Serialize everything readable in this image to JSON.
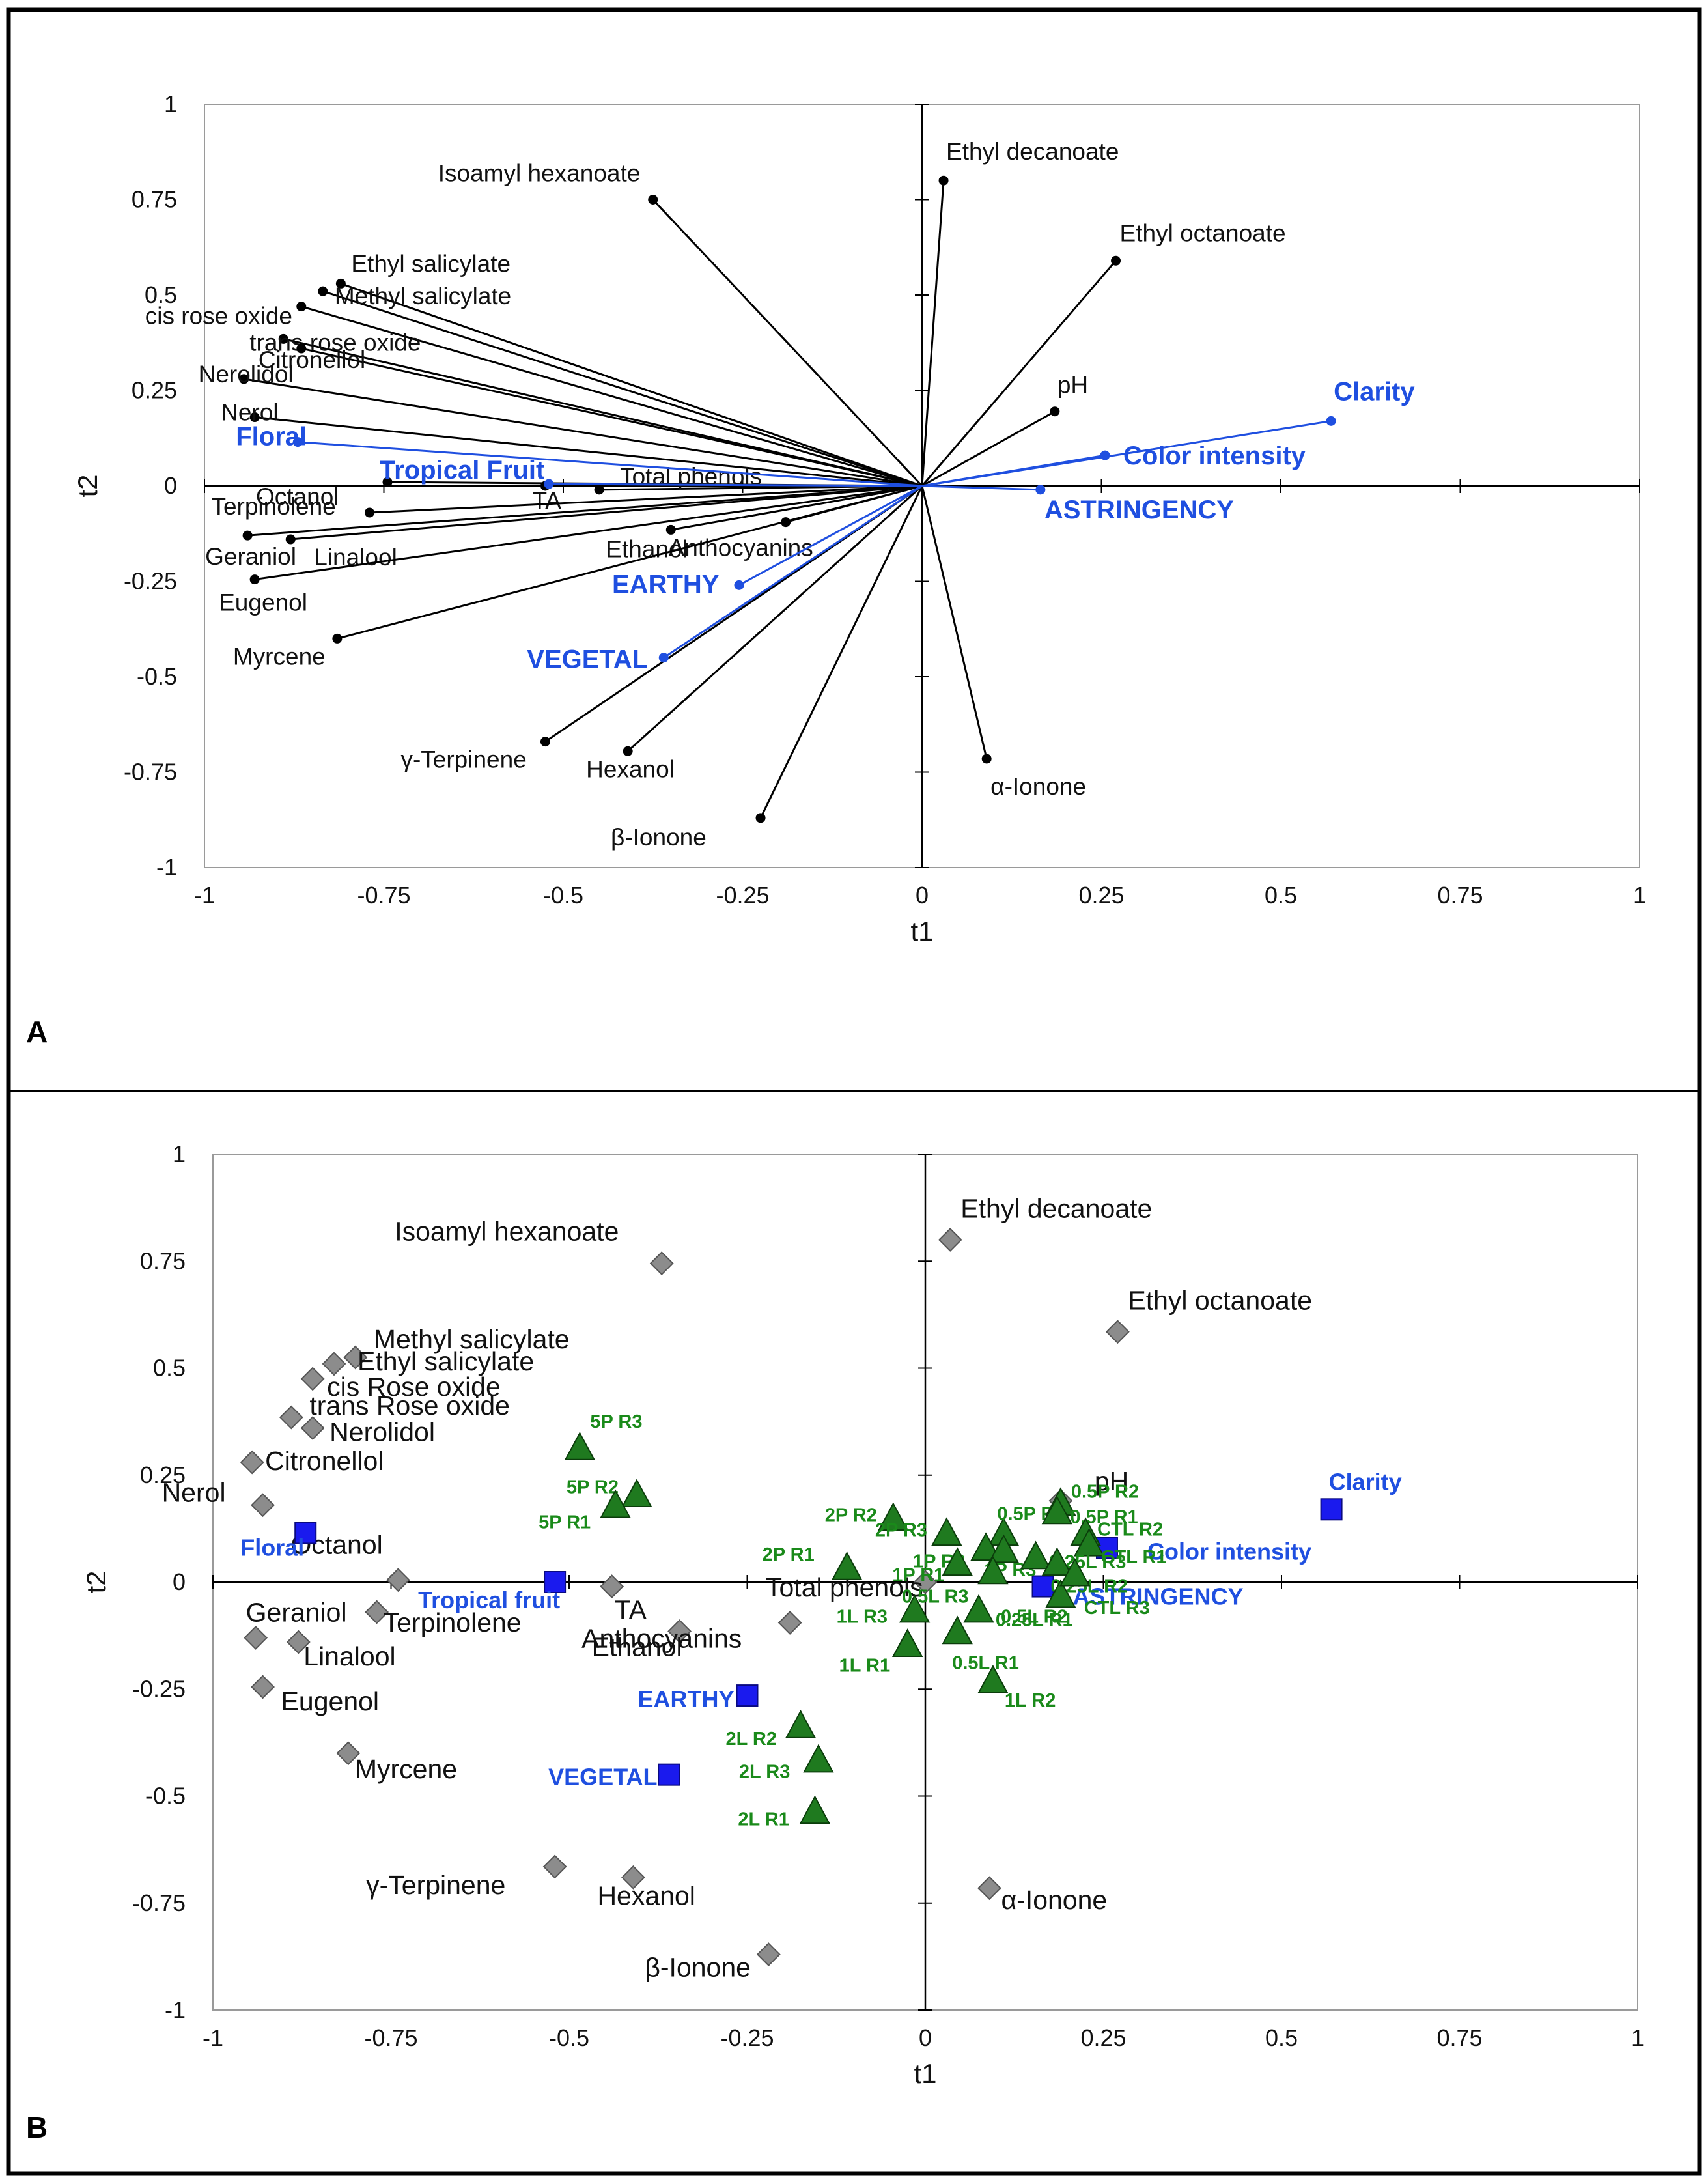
{
  "chart_data": [
    {
      "type": "scatter",
      "panel": "A",
      "xlabel": "t1",
      "ylabel": "t2",
      "xlim": [
        -1,
        1
      ],
      "ylim": [
        -1,
        1
      ],
      "xticks": [
        "-1",
        "-0.75",
        "-0.5",
        "-0.25",
        "0",
        "0.25",
        "0.5",
        "0.75",
        "1"
      ],
      "yticks": [
        "1",
        "0.75",
        "0.5",
        "0.25",
        "0",
        "-0.25",
        "-0.5",
        "-0.75",
        "-1"
      ],
      "colors": {
        "x_variables": "#000000",
        "y_variables": "#1f4fe0"
      },
      "x_variables": [
        {
          "name": "Isoamyl hexanoate",
          "x": -0.375,
          "y": 0.75
        },
        {
          "name": "Ethyl decanoate",
          "x": 0.03,
          "y": 0.8
        },
        {
          "name": "Ethyl octanoate",
          "x": 0.27,
          "y": 0.59
        },
        {
          "name": "Ethyl salicylate",
          "x": -0.81,
          "y": 0.53
        },
        {
          "name": "Methyl salicylate",
          "x": -0.835,
          "y": 0.51
        },
        {
          "name": "cis rose oxide",
          "x": -0.865,
          "y": 0.47
        },
        {
          "name": "trans rose oxide",
          "x": -0.89,
          "y": 0.385
        },
        {
          "name": "Citronellol",
          "x": -0.865,
          "y": 0.36
        },
        {
          "name": "Nerolidol",
          "x": -0.945,
          "y": 0.28
        },
        {
          "name": "Nerol",
          "x": -0.93,
          "y": 0.18
        },
        {
          "name": "Octanol",
          "x": -0.745,
          "y": 0.01
        },
        {
          "name": "TA",
          "x": -0.525,
          "y": 0.0
        },
        {
          "name": "Total phenols",
          "x": -0.45,
          "y": -0.01
        },
        {
          "name": "pH",
          "x": 0.185,
          "y": 0.195
        },
        {
          "name": "Terpinolene",
          "x": -0.77,
          "y": -0.07
        },
        {
          "name": "Geraniol",
          "x": -0.94,
          "y": -0.13
        },
        {
          "name": "Linalool",
          "x": -0.88,
          "y": -0.14
        },
        {
          "name": "Ethanol",
          "x": -0.35,
          "y": -0.115
        },
        {
          "name": "Anthocyanins",
          "x": -0.19,
          "y": -0.095
        },
        {
          "name": "Eugenol",
          "x": -0.93,
          "y": -0.245
        },
        {
          "name": "Myrcene",
          "x": -0.815,
          "y": -0.4
        },
        {
          "name": "γ-Terpinene",
          "x": -0.525,
          "y": -0.67
        },
        {
          "name": "Hexanol",
          "x": -0.41,
          "y": -0.695
        },
        {
          "name": "β-Ionone",
          "x": -0.225,
          "y": -0.87
        },
        {
          "name": "α-Ionone",
          "x": 0.09,
          "y": -0.715
        }
      ],
      "y_variables": [
        {
          "name": "Clarity",
          "x": 0.57,
          "y": 0.17
        },
        {
          "name": "Color intensity",
          "x": 0.255,
          "y": 0.08
        },
        {
          "name": "ASTRINGENCY",
          "x": 0.165,
          "y": -0.01
        },
        {
          "name": "Floral",
          "x": -0.87,
          "y": 0.115
        },
        {
          "name": "Tropical Fruit",
          "x": -0.52,
          "y": 0.005
        },
        {
          "name": "EARTHY",
          "x": -0.255,
          "y": -0.26
        },
        {
          "name": "VEGETAL",
          "x": -0.36,
          "y": -0.45
        }
      ]
    },
    {
      "type": "scatter",
      "panel": "B",
      "xlabel": "t1",
      "ylabel": "t2",
      "xlim": [
        -1,
        1
      ],
      "ylim": [
        -1,
        1
      ],
      "xticks": [
        "-1",
        "-0.75",
        "-0.5",
        "-0.25",
        "0",
        "0.25",
        "0.5",
        "0.75",
        "1"
      ],
      "yticks": [
        "1",
        "0.75",
        "0.5",
        "0.25",
        "0",
        "-0.25",
        "-0.5",
        "-0.75",
        "-1"
      ],
      "colors": {
        "x_variables": "#8c8c8c",
        "y_variables": "#1a1aee",
        "observations": "#1f7a1f",
        "observation_labels": "#1a8a1a"
      },
      "x_variables": [
        {
          "name": "Isoamyl hexanoate",
          "x": -0.37,
          "y": 0.745
        },
        {
          "name": "Ethyl decanoate",
          "x": 0.035,
          "y": 0.8
        },
        {
          "name": "Ethyl octanoate",
          "x": 0.27,
          "y": 0.585
        },
        {
          "name": "Methyl salicylate",
          "x": -0.8,
          "y": 0.525
        },
        {
          "name": "Ethyl salicylate",
          "x": -0.83,
          "y": 0.51
        },
        {
          "name": "cis Rose oxide",
          "x": -0.86,
          "y": 0.475
        },
        {
          "name": "trans Rose oxide",
          "x": -0.89,
          "y": 0.385
        },
        {
          "name": "Nerolidol",
          "x": -0.86,
          "y": 0.36
        },
        {
          "name": "Citronellol",
          "x": -0.945,
          "y": 0.28
        },
        {
          "name": "Nerol",
          "x": -0.93,
          "y": 0.18
        },
        {
          "name": "Octanol",
          "x": -0.74,
          "y": 0.005
        },
        {
          "name": "TA",
          "x": -0.44,
          "y": -0.01
        },
        {
          "name": "Total phenols",
          "x": 0.0,
          "y": 0.0
        },
        {
          "name": "pH",
          "x": 0.19,
          "y": 0.19
        },
        {
          "name": "Geraniol",
          "x": -0.94,
          "y": -0.13
        },
        {
          "name": "Terpinolene",
          "x": -0.77,
          "y": -0.07
        },
        {
          "name": "Linalool",
          "x": -0.88,
          "y": -0.14
        },
        {
          "name": "Ethanol",
          "x": -0.345,
          "y": -0.115
        },
        {
          "name": "Anthocyanins",
          "x": -0.19,
          "y": -0.095
        },
        {
          "name": "Eugenol",
          "x": -0.93,
          "y": -0.245
        },
        {
          "name": "Myrcene",
          "x": -0.81,
          "y": -0.4
        },
        {
          "name": "γ-Terpinene",
          "x": -0.52,
          "y": -0.665
        },
        {
          "name": "Hexanol",
          "x": -0.41,
          "y": -0.69
        },
        {
          "name": "β-Ionone",
          "x": -0.22,
          "y": -0.87
        },
        {
          "name": "α-Ionone",
          "x": 0.09,
          "y": -0.715
        }
      ],
      "y_variables": [
        {
          "name": "Clarity",
          "x": 0.57,
          "y": 0.17
        },
        {
          "name": "Color intensity",
          "x": 0.255,
          "y": 0.08
        },
        {
          "name": "ASTRINGENCY",
          "x": 0.165,
          "y": -0.01
        },
        {
          "name": "Floral",
          "x": -0.87,
          "y": 0.115
        },
        {
          "name": "Tropical fruit",
          "x": -0.52,
          "y": 0.0
        },
        {
          "name": "EARTHY",
          "x": -0.25,
          "y": -0.265
        },
        {
          "name": "VEGETAL",
          "x": -0.36,
          "y": -0.45
        }
      ],
      "observations": [
        {
          "name": "5P R3",
          "x": -0.485,
          "y": 0.315
        },
        {
          "name": "5P R2",
          "x": -0.405,
          "y": 0.205
        },
        {
          "name": "5P R1",
          "x": -0.435,
          "y": 0.18
        },
        {
          "name": "2P R2",
          "x": -0.045,
          "y": 0.15
        },
        {
          "name": "2P R3",
          "x": 0.03,
          "y": 0.115
        },
        {
          "name": "2P R1",
          "x": -0.11,
          "y": 0.035
        },
        {
          "name": "0.5P R3",
          "x": 0.11,
          "y": 0.115
        },
        {
          "name": "0.5P R2",
          "x": 0.19,
          "y": 0.185
        },
        {
          "name": "0.5P R1",
          "x": 0.185,
          "y": 0.165
        },
        {
          "name": "CTL R2",
          "x": 0.225,
          "y": 0.115
        },
        {
          "name": "CTL R1",
          "x": 0.23,
          "y": 0.09
        },
        {
          "name": "1P R2",
          "x": 0.085,
          "y": 0.08
        },
        {
          "name": "1P R1",
          "x": 0.045,
          "y": 0.045
        },
        {
          "name": "1P R3",
          "x": 0.11,
          "y": 0.075
        },
        {
          "name": "0.25L R3",
          "x": 0.155,
          "y": 0.06
        },
        {
          "name": "0.25L R2",
          "x": 0.185,
          "y": 0.045
        },
        {
          "name": "0.25L R1",
          "x": 0.19,
          "y": -0.03
        },
        {
          "name": "0.5L R3",
          "x": 0.095,
          "y": 0.025
        },
        {
          "name": "CTL R3",
          "x": 0.21,
          "y": 0.02
        },
        {
          "name": "1L R3",
          "x": -0.015,
          "y": -0.065
        },
        {
          "name": "0.5L R2",
          "x": 0.075,
          "y": -0.065
        },
        {
          "name": "0.5L R1",
          "x": 0.045,
          "y": -0.115
        },
        {
          "name": "1L R1",
          "x": -0.025,
          "y": -0.145
        },
        {
          "name": "1L R2",
          "x": 0.095,
          "y": -0.23
        },
        {
          "name": "2L R2",
          "x": -0.175,
          "y": -0.335
        },
        {
          "name": "2L R3",
          "x": -0.15,
          "y": -0.415
        },
        {
          "name": "2L R1",
          "x": -0.155,
          "y": -0.535
        }
      ]
    }
  ],
  "panels": {
    "a_letter": "A",
    "b_letter": "B"
  }
}
